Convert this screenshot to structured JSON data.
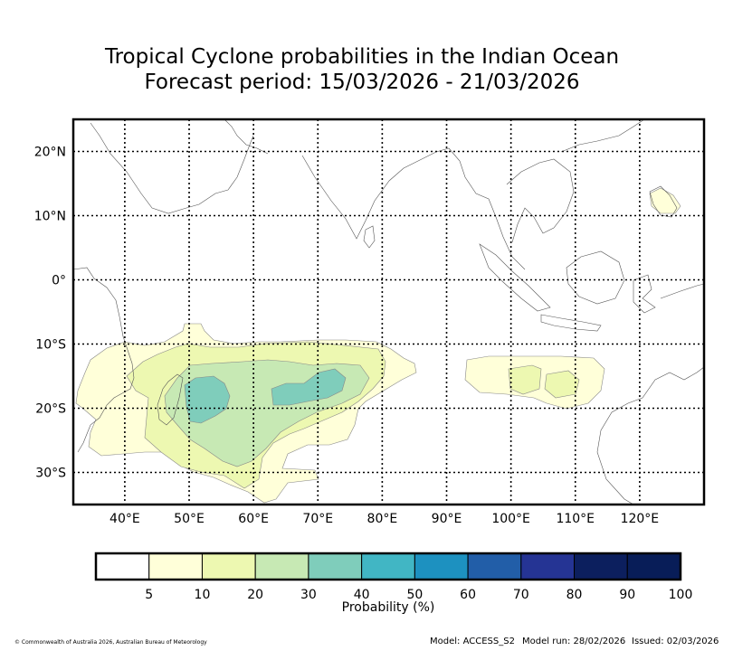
{
  "title": {
    "line1": "Tropical Cyclone probabilities in the Indian Ocean",
    "line2": "Forecast period: 15/03/2026 - 21/03/2026"
  },
  "map": {
    "lon_range": [
      32,
      130
    ],
    "lat_range": [
      -35,
      25
    ],
    "lon_ticks": [
      {
        "value": 40,
        "label": "40°E"
      },
      {
        "value": 50,
        "label": "50°E"
      },
      {
        "value": 60,
        "label": "60°E"
      },
      {
        "value": 70,
        "label": "70°E"
      },
      {
        "value": 80,
        "label": "80°E"
      },
      {
        "value": 90,
        "label": "90°E"
      },
      {
        "value": 100,
        "label": "100°E"
      },
      {
        "value": 110,
        "label": "110°E"
      },
      {
        "value": 120,
        "label": "120°E"
      }
    ],
    "lat_ticks": [
      {
        "value": 20,
        "label": "20°N"
      },
      {
        "value": 10,
        "label": "10°N"
      },
      {
        "value": 0,
        "label": "0°"
      },
      {
        "value": -10,
        "label": "10°S"
      },
      {
        "value": -20,
        "label": "20°S"
      },
      {
        "value": -30,
        "label": "30°S"
      }
    ]
  },
  "colorbar": {
    "title": "Probability (%)",
    "labels": [
      "5",
      "10",
      "20",
      "30",
      "40",
      "50",
      "60",
      "70",
      "80",
      "90",
      "100"
    ],
    "colors": [
      "#ffffff",
      "#ffffd9",
      "#edf8b1",
      "#c7e9b4",
      "#7fcdbb",
      "#41b6c4",
      "#1d91c0",
      "#225ea8",
      "#253494",
      "#0c1f5e",
      "#081d58"
    ]
  },
  "footer": {
    "copyright": "© Commonwealth of Australia 2026, Australian Bureau of Meteorology",
    "model": "Model: ACCESS_S2",
    "model_run": "Model run: 28/02/2026",
    "issued": "Issued: 02/03/2026"
  }
}
